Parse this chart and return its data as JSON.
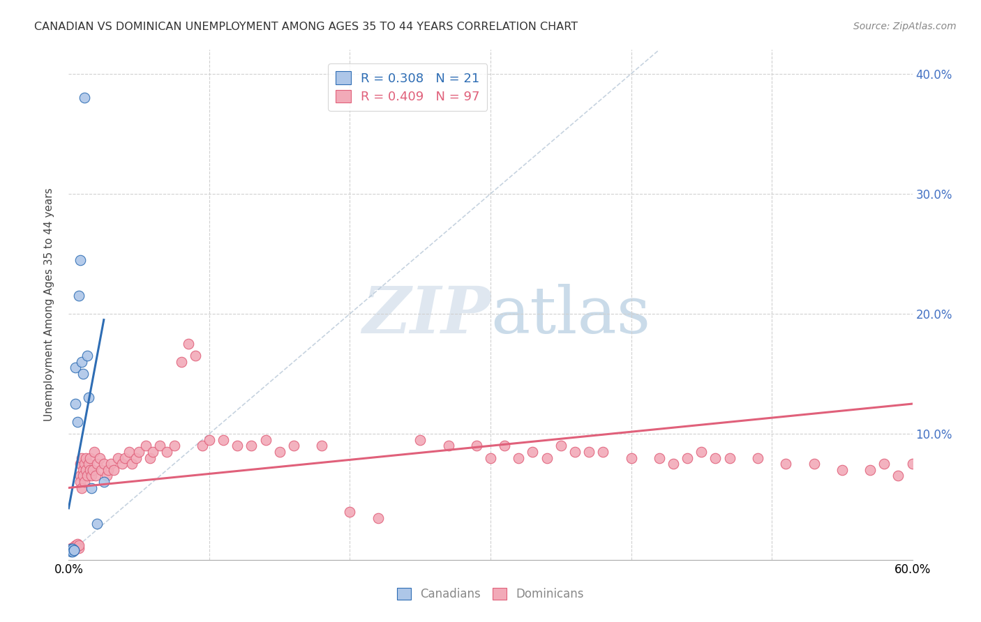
{
  "title": "CANADIAN VS DOMINICAN UNEMPLOYMENT AMONG AGES 35 TO 44 YEARS CORRELATION CHART",
  "source": "Source: ZipAtlas.com",
  "ylabel": "Unemployment Among Ages 35 to 44 years",
  "xlim": [
    0.0,
    0.6
  ],
  "ylim": [
    -0.005,
    0.42
  ],
  "yticks": [
    0.0,
    0.1,
    0.2,
    0.3,
    0.4
  ],
  "ytick_labels": [
    "",
    "10.0%",
    "20.0%",
    "30.0%",
    "40.0%"
  ],
  "xticks": [
    0.0,
    0.1,
    0.2,
    0.3,
    0.4,
    0.5,
    0.6
  ],
  "xtick_labels": [
    "0.0%",
    "",
    "",
    "",
    "",
    "",
    "60.0%"
  ],
  "legend_canadian_R": "0.308",
  "legend_canadian_N": "21",
  "legend_dominican_R": "0.409",
  "legend_dominican_N": "97",
  "canadian_color": "#adc6e8",
  "dominican_color": "#f2aab8",
  "canadian_line_color": "#2e6db4",
  "dominican_line_color": "#e0607a",
  "diagonal_color": "#b8c8d8",
  "background_color": "#ffffff",
  "canadians_x": [
    0.001,
    0.002,
    0.002,
    0.003,
    0.003,
    0.003,
    0.004,
    0.004,
    0.005,
    0.005,
    0.006,
    0.007,
    0.008,
    0.009,
    0.01,
    0.011,
    0.013,
    0.014,
    0.016,
    0.02,
    0.025
  ],
  "canadians_y": [
    0.003,
    0.002,
    0.004,
    0.003,
    0.004,
    0.002,
    0.003,
    0.003,
    0.125,
    0.155,
    0.11,
    0.215,
    0.245,
    0.16,
    0.15,
    0.38,
    0.165,
    0.13,
    0.055,
    0.025,
    0.06
  ],
  "dominicans_x": [
    0.001,
    0.002,
    0.002,
    0.003,
    0.003,
    0.003,
    0.004,
    0.004,
    0.004,
    0.005,
    0.005,
    0.005,
    0.006,
    0.006,
    0.007,
    0.007,
    0.008,
    0.008,
    0.008,
    0.009,
    0.009,
    0.01,
    0.01,
    0.011,
    0.011,
    0.012,
    0.012,
    0.013,
    0.014,
    0.015,
    0.015,
    0.016,
    0.017,
    0.018,
    0.019,
    0.02,
    0.022,
    0.023,
    0.025,
    0.027,
    0.028,
    0.03,
    0.032,
    0.035,
    0.038,
    0.04,
    0.043,
    0.045,
    0.048,
    0.05,
    0.055,
    0.058,
    0.06,
    0.065,
    0.07,
    0.075,
    0.08,
    0.085,
    0.09,
    0.095,
    0.1,
    0.11,
    0.12,
    0.13,
    0.14,
    0.15,
    0.16,
    0.18,
    0.2,
    0.22,
    0.25,
    0.27,
    0.29,
    0.31,
    0.33,
    0.35,
    0.38,
    0.4,
    0.43,
    0.45,
    0.47,
    0.49,
    0.51,
    0.53,
    0.55,
    0.57,
    0.58,
    0.59,
    0.6,
    0.42,
    0.44,
    0.46,
    0.36,
    0.37,
    0.34,
    0.32,
    0.3
  ],
  "dominicans_y": [
    0.003,
    0.005,
    0.003,
    0.004,
    0.003,
    0.005,
    0.004,
    0.006,
    0.003,
    0.005,
    0.007,
    0.004,
    0.006,
    0.008,
    0.005,
    0.007,
    0.065,
    0.075,
    0.06,
    0.08,
    0.055,
    0.07,
    0.065,
    0.075,
    0.06,
    0.07,
    0.08,
    0.065,
    0.075,
    0.07,
    0.08,
    0.065,
    0.07,
    0.085,
    0.065,
    0.075,
    0.08,
    0.07,
    0.075,
    0.065,
    0.07,
    0.075,
    0.07,
    0.08,
    0.075,
    0.08,
    0.085,
    0.075,
    0.08,
    0.085,
    0.09,
    0.08,
    0.085,
    0.09,
    0.085,
    0.09,
    0.16,
    0.175,
    0.165,
    0.09,
    0.095,
    0.095,
    0.09,
    0.09,
    0.095,
    0.085,
    0.09,
    0.09,
    0.035,
    0.03,
    0.095,
    0.09,
    0.09,
    0.09,
    0.085,
    0.09,
    0.085,
    0.08,
    0.075,
    0.085,
    0.08,
    0.08,
    0.075,
    0.075,
    0.07,
    0.07,
    0.075,
    0.065,
    0.075,
    0.08,
    0.08,
    0.08,
    0.085,
    0.085,
    0.08,
    0.08,
    0.08
  ]
}
